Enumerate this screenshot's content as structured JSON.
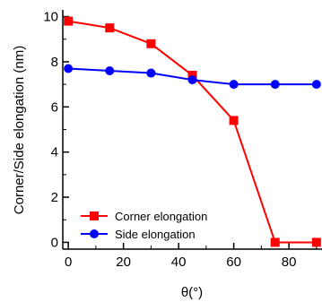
{
  "chart_data": {
    "type": "line",
    "xlabel": "θ(°)",
    "ylabel": "Corner/Side elongation (nm)",
    "xlim": [
      -2,
      92
    ],
    "ylim": [
      -0.3,
      10.3
    ],
    "x_ticks": [
      0,
      20,
      40,
      60,
      80
    ],
    "y_ticks": [
      0,
      2,
      4,
      6,
      8,
      10
    ],
    "x_tick_labels": [
      "0",
      "20",
      "40",
      "60",
      "80"
    ],
    "y_tick_labels": [
      "0",
      "2",
      "4",
      "6",
      "8",
      "10"
    ],
    "grid": false,
    "legend_position": "bottom-left",
    "x": [
      0,
      15,
      30,
      45,
      60,
      75,
      90
    ],
    "series": [
      {
        "name": "Corner elongation",
        "marker": "square",
        "color": "#ff0000",
        "values": [
          9.8,
          9.5,
          8.8,
          7.4,
          5.4,
          0.0,
          0.0
        ]
      },
      {
        "name": "Side elongation",
        "marker": "circle",
        "color": "#0000ff",
        "values": [
          7.7,
          7.6,
          7.5,
          7.2,
          7.0,
          7.0,
          7.0
        ]
      }
    ]
  }
}
